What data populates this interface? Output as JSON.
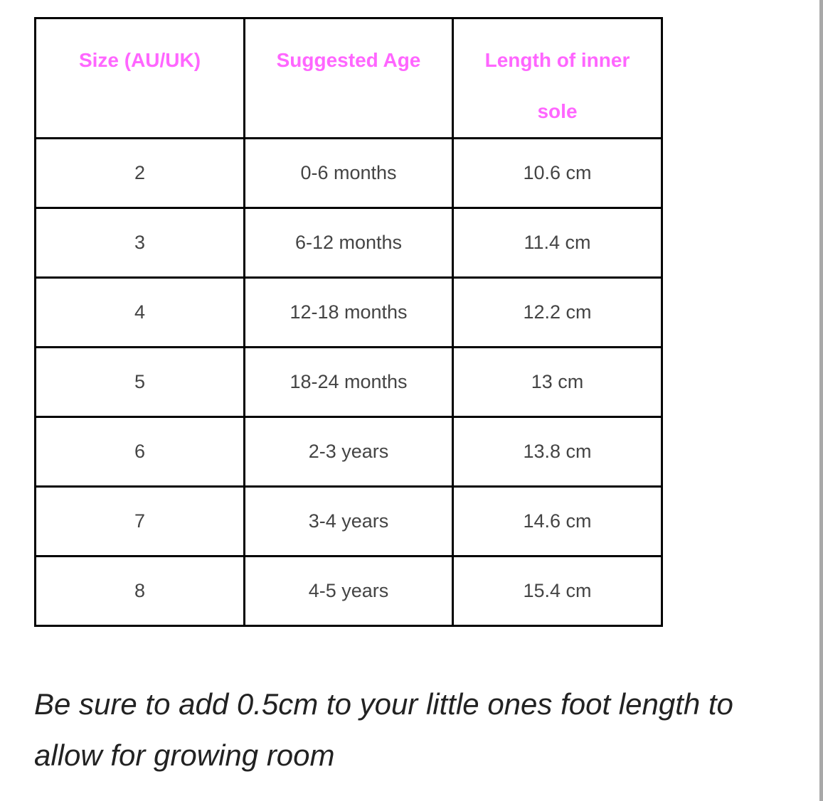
{
  "table": {
    "headers": [
      "Size (AU/UK)",
      "Suggested Age",
      "Length of inner sole"
    ],
    "rows": [
      [
        "2",
        "0-6 months",
        "10.6 cm"
      ],
      [
        "3",
        "6-12 months",
        "11.4 cm"
      ],
      [
        "4",
        "12-18 months",
        "12.2 cm"
      ],
      [
        "5",
        "18-24 months",
        "13 cm"
      ],
      [
        "6",
        "2-3 years",
        "13.8 cm"
      ],
      [
        "7",
        "3-4 years",
        "14.6 cm"
      ],
      [
        "8",
        "4-5 years",
        "15.4 cm"
      ]
    ]
  },
  "note": "Be sure to add 0.5cm to your little ones foot length to allow for growing room",
  "colors": {
    "header_text": "#ff66ff",
    "cell_text": "#444444",
    "border": "#000000"
  }
}
